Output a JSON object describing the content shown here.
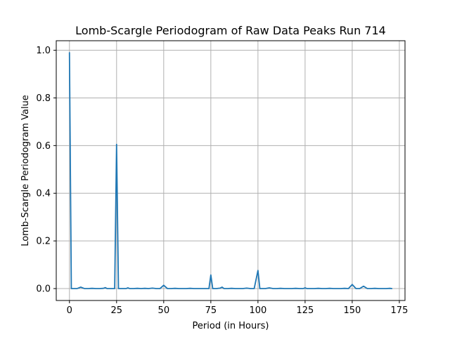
{
  "chart_data": {
    "type": "line",
    "title": "Lomb-Scargle Periodogram of Raw Data Peaks Run 714",
    "xlabel": "Period (in Hours)",
    "ylabel": "Lomb-Scargle Periodogram Value",
    "xlim": [
      -7,
      178
    ],
    "ylim": [
      -0.05,
      1.04
    ],
    "xticks": [
      0,
      25,
      50,
      75,
      100,
      125,
      150,
      175
    ],
    "yticks": [
      0.0,
      0.2,
      0.4,
      0.6,
      0.8,
      1.0
    ],
    "xtick_labels": [
      "0",
      "25",
      "50",
      "75",
      "100",
      "125",
      "150",
      "175"
    ],
    "ytick_labels": [
      "0.0",
      "0.2",
      "0.4",
      "0.6",
      "0.8",
      "1.0"
    ],
    "grid": true,
    "series": [
      {
        "color": "#1f77b4",
        "x": [
          0,
          1,
          2,
          4,
          6,
          8,
          10,
          12,
          14,
          16,
          18,
          19,
          20,
          22,
          24,
          25,
          26,
          28,
          30,
          31,
          32,
          34,
          36,
          38,
          40,
          42,
          44,
          46,
          48,
          50,
          52,
          54,
          56,
          58,
          60,
          62,
          64,
          66,
          68,
          70,
          72,
          74,
          75,
          76,
          78,
          80,
          81,
          82,
          84,
          86,
          88,
          90,
          92,
          94,
          96,
          98,
          100,
          101,
          102,
          104,
          106,
          108,
          110,
          112,
          114,
          116,
          118,
          120,
          122,
          124,
          125,
          126,
          128,
          130,
          132,
          134,
          136,
          138,
          140,
          142,
          144,
          146,
          148,
          150,
          152,
          154,
          156,
          158,
          160,
          162,
          164,
          166,
          168,
          170,
          171
        ],
        "y": [
          0.99,
          0.0,
          0.0,
          0.0,
          0.006,
          0.0,
          0.0,
          0.001,
          0.0,
          0.0,
          0.001,
          0.004,
          0.0,
          0.0,
          0.0,
          0.605,
          0.0,
          0.0,
          0.0,
          0.003,
          0.0,
          0.0,
          0.001,
          0.0,
          0.001,
          0.0,
          0.002,
          0.0,
          0.0,
          0.014,
          0.0,
          0.0,
          0.001,
          0.0,
          0.0,
          0.0,
          0.001,
          0.0,
          0.0,
          0.0,
          0.0,
          0.0,
          0.057,
          0.0,
          0.0,
          0.002,
          0.006,
          0.0,
          0.0,
          0.001,
          0.0,
          0.0,
          0.0,
          0.002,
          0.0,
          0.0,
          0.076,
          0.0,
          0.0,
          0.0,
          0.003,
          0.0,
          0.0,
          0.001,
          0.0,
          0.0,
          0.0,
          0.001,
          0.0,
          0.0,
          0.003,
          0.0,
          0.0,
          0.0,
          0.001,
          0.0,
          0.0,
          0.001,
          0.0,
          0.0,
          0.0,
          0.001,
          0.0,
          0.017,
          0.0,
          0.0,
          0.01,
          0.0,
          0.0,
          0.001,
          0.0,
          0.0,
          0.0,
          0.001,
          0.0
        ]
      }
    ]
  }
}
